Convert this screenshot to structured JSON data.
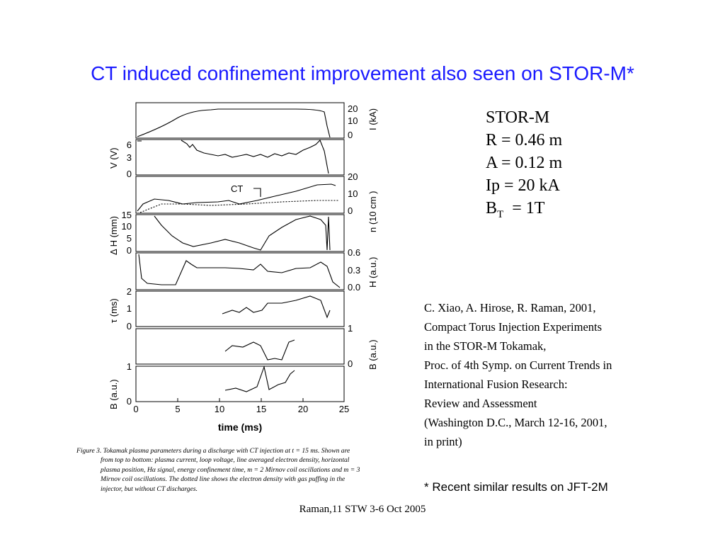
{
  "slide": {
    "title": "CT induced confinement improvement also seen on STOR-M*",
    "params": {
      "device": "STOR-M",
      "R": "R  = 0.46 m",
      "A": "A  = 0.12 m",
      "Ip": "Ip  = 20 kA",
      "BT_base": "B",
      "BT_sub": "T",
      "BT_value": "  = 1T"
    },
    "reference": [
      "C. Xiao, A. Hirose, R. Raman, 2001,",
      "Compact Torus Injection Experiments",
      "in the STOR-M Tokamak,",
      "Proc. of 4th Symp. on Current Trends in",
      "International Fusion Research:",
      "Review and Assessment",
      "(Washington D.C., March 12-16, 2001,",
      "in print)"
    ],
    "note": "* Recent similar results on JFT-2M",
    "footer": "Raman,11 STW 3-6 Oct 2005"
  },
  "figure": {
    "xlabel": "time (ms)",
    "xticks": [
      "0",
      "5",
      "10",
      "15",
      "20",
      "25"
    ],
    "ct_label": "CT",
    "panels": [
      {
        "label_left": "",
        "label_right": "I  (kA)",
        "left_ticks": [],
        "right_ticks": [
          "20",
          "10",
          "0"
        ]
      },
      {
        "label_left": "V  (V)",
        "label_right": "",
        "left_ticks": [
          "6",
          "3",
          "0"
        ],
        "right_ticks": []
      },
      {
        "label_left": "",
        "label_right": "n  (10   cm  )",
        "left_ticks": [],
        "right_ticks": [
          "20",
          "10",
          "0"
        ]
      },
      {
        "label_left": "Δ H (mm)",
        "label_right": "",
        "left_ticks": [
          "15",
          "10",
          "5",
          "0"
        ],
        "right_ticks": []
      },
      {
        "label_left": "",
        "label_right": "H  (a.u.)",
        "left_ticks": [],
        "right_ticks": [
          "0.6",
          "0.3",
          "0.0"
        ]
      },
      {
        "label_left": "τ (ms)",
        "label_right": "",
        "left_ticks": [
          "2",
          "1",
          "0"
        ],
        "right_ticks": []
      },
      {
        "label_left": "",
        "label_right": "B      (a.u.)",
        "left_ticks": [],
        "right_ticks": [
          "1",
          "0"
        ]
      },
      {
        "label_left": "B      (a.u.)",
        "label_right": "",
        "left_ticks": [
          "1",
          "0"
        ],
        "right_ticks": []
      }
    ],
    "caption": [
      "Figure 3. Tokamak plasma parameters during a discharge with CT injection at t = 15 ms. Shown are",
      "from top to bottom:  plasma current, loop voltage, line averaged electron density, horizontal",
      "plasma position, Hα signal, energy confinement time, m = 2 Mirnov coil oscillations and m = 3",
      "Mirnov coil oscillations. The dotted line shows the electron density with gas puffing in the",
      "injector, but without CT discharges."
    ]
  }
}
